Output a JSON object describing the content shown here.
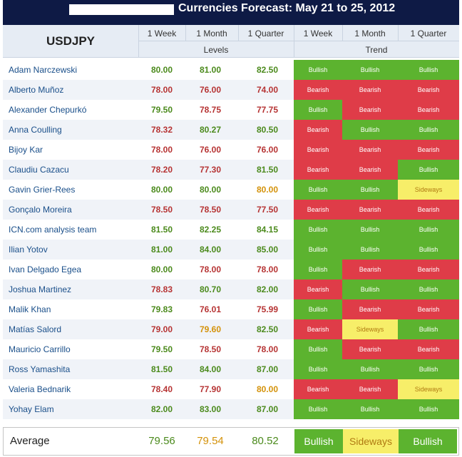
{
  "title": "Currencies Forecast: May 21 to 25, 2012",
  "pair": "USDJPY",
  "headers": {
    "levels_cols": [
      "1 Week",
      "1 Month",
      "1 Quarter"
    ],
    "trend_cols": [
      "1 Week",
      "1 Month",
      "1 Quarter"
    ],
    "levels_group": "Levels",
    "trend_group": "Trend"
  },
  "colors": {
    "title_bar": "#0e1a45",
    "bullish": "#5cb32f",
    "bearish": "#df3c48",
    "sideways": "#f7ee69"
  },
  "rows": [
    {
      "name": "Adam Narczewski",
      "levels": [
        "80.00",
        "81.00",
        "82.50"
      ],
      "trends": [
        "Bullish",
        "Bullish",
        "Bullish"
      ]
    },
    {
      "name": "Alberto Muñoz",
      "levels": [
        "78.00",
        "76.00",
        "74.00"
      ],
      "trends": [
        "Bearish",
        "Bearish",
        "Bearish"
      ]
    },
    {
      "name": "Alexander Chepurkó",
      "levels": [
        "79.50",
        "78.75",
        "77.75"
      ],
      "trends": [
        "Bullish",
        "Bearish",
        "Bearish"
      ]
    },
    {
      "name": "Anna Coulling",
      "levels": [
        "78.32",
        "80.27",
        "80.50"
      ],
      "trends": [
        "Bearish",
        "Bullish",
        "Bullish"
      ]
    },
    {
      "name": "Bijoy Kar",
      "levels": [
        "78.00",
        "76.00",
        "76.00"
      ],
      "trends": [
        "Bearish",
        "Bearish",
        "Bearish"
      ]
    },
    {
      "name": "Claudiu Cazacu",
      "levels": [
        "78.20",
        "77.30",
        "81.50"
      ],
      "trends": [
        "Bearish",
        "Bearish",
        "Bullish"
      ]
    },
    {
      "name": "Gavin Grier-Rees",
      "levels": [
        "80.00",
        "80.00",
        "80.00"
      ],
      "trends": [
        "Bullish",
        "Bullish",
        "Sideways"
      ]
    },
    {
      "name": "Gonçalo Moreira",
      "levels": [
        "78.50",
        "78.50",
        "77.50"
      ],
      "trends": [
        "Bearish",
        "Bearish",
        "Bearish"
      ]
    },
    {
      "name": "ICN.com analysis team",
      "levels": [
        "81.50",
        "82.25",
        "84.15"
      ],
      "trends": [
        "Bullish",
        "Bullish",
        "Bullish"
      ]
    },
    {
      "name": "Ilian Yotov",
      "levels": [
        "81.00",
        "84.00",
        "85.00"
      ],
      "trends": [
        "Bullish",
        "Bullish",
        "Bullish"
      ]
    },
    {
      "name": "Ivan Delgado Egea",
      "levels": [
        "80.00",
        "78.00",
        "78.00"
      ],
      "trends": [
        "Bullish",
        "Bearish",
        "Bearish"
      ]
    },
    {
      "name": "Joshua Martinez",
      "levels": [
        "78.83",
        "80.70",
        "82.00"
      ],
      "trends": [
        "Bearish",
        "Bullish",
        "Bullish"
      ]
    },
    {
      "name": "Malik Khan",
      "levels": [
        "79.83",
        "76.01",
        "75.99"
      ],
      "trends": [
        "Bullish",
        "Bearish",
        "Bearish"
      ]
    },
    {
      "name": "Matías Salord",
      "levels": [
        "79.00",
        "79.60",
        "82.50"
      ],
      "trends": [
        "Bearish",
        "Sideways",
        "Bullish"
      ]
    },
    {
      "name": "Mauricio Carrillo",
      "levels": [
        "79.50",
        "78.50",
        "78.00"
      ],
      "trends": [
        "Bullish",
        "Bearish",
        "Bearish"
      ]
    },
    {
      "name": "Ross Yamashita",
      "levels": [
        "81.50",
        "84.00",
        "87.00"
      ],
      "trends": [
        "Bullish",
        "Bullish",
        "Bullish"
      ]
    },
    {
      "name": "Valeria Bednarik",
      "levels": [
        "78.40",
        "77.90",
        "80.00"
      ],
      "trends": [
        "Bearish",
        "Bearish",
        "Sideways"
      ]
    },
    {
      "name": "Yohay Elam",
      "levels": [
        "82.00",
        "83.00",
        "87.00"
      ],
      "trends": [
        "Bullish",
        "Bullish",
        "Bullish"
      ]
    }
  ],
  "average": {
    "label": "Average",
    "levels": [
      "79.56",
      "79.54",
      "80.52"
    ],
    "trends": [
      "Bullish",
      "Sideways",
      "Bullish"
    ]
  }
}
